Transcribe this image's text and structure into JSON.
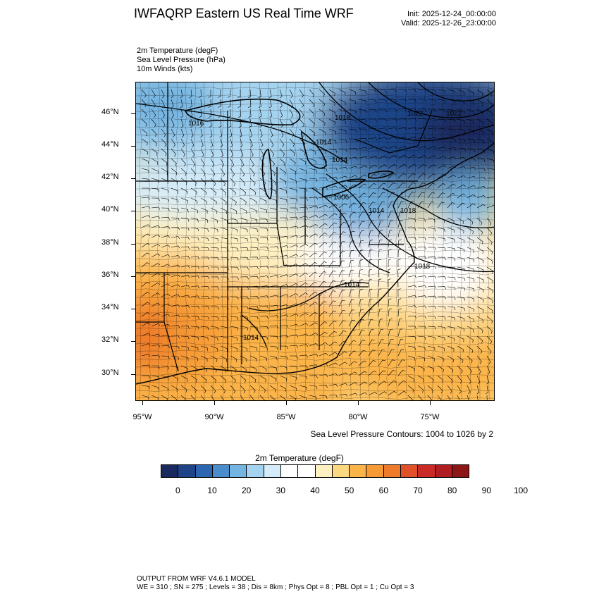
{
  "header": {
    "title": "IWFAQRP Eastern US Real Time WRF",
    "init": "Init: 2025-12-24_00:00:00",
    "valid": "Valid: 2025-12-26_23:00:00"
  },
  "fields": [
    "2m Temperature   (degF)",
    "Sea Level Pressure   (hPa)",
    "10m Winds   (kts)"
  ],
  "axes": {
    "latitudes": [
      "46°N",
      "44°N",
      "42°N",
      "40°N",
      "38°N",
      "36°N",
      "34°N",
      "32°N",
      "30°N"
    ],
    "longitudes": [
      "95°W",
      "90°W",
      "85°W",
      "80°W",
      "75°W"
    ]
  },
  "pressure_labels": [
    "1016",
    "1018",
    "1014",
    "1014",
    "1022",
    "1022",
    "1006",
    "1014",
    "1018",
    "1018",
    "1014",
    "1014"
  ],
  "contour_note": "Sea Level Pressure Contours: 1004 to 1026 by 2",
  "colorbar": {
    "title": "2m Temperature  (degF)",
    "labels": [
      "0",
      "10",
      "20",
      "30",
      "40",
      "50",
      "60",
      "70",
      "80",
      "90",
      "100"
    ],
    "colors": [
      "#1a2a5e",
      "#1f4488",
      "#2c66b0",
      "#4a8ccc",
      "#74b4e0",
      "#a4d3f0",
      "#d4ecfa",
      "#ffffff",
      "#ffffff",
      "#fef0c0",
      "#fdd882",
      "#fbb44a",
      "#f59a34",
      "#ee7a2c",
      "#e2502a",
      "#cc2a26",
      "#b01e22",
      "#8c1618"
    ]
  },
  "footer": {
    "line1": "OUTPUT FROM WRF V4.6.1 MODEL",
    "line2": "WE = 310 ; SN = 275 ; Levels = 38 ; Dis = 8km ; Phys Opt = 8 ; PBL Opt = 1 ; Cu Opt = 3"
  }
}
